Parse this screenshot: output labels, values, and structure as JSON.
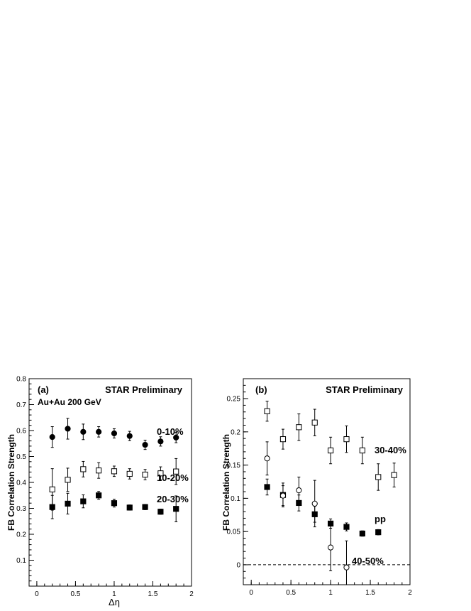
{
  "chart_data": [
    {
      "panel_label": "(a)",
      "type": "scatter",
      "title": "STAR Preliminary",
      "subtitle": "Au+Au 200 GeV",
      "xlabel": "Δη",
      "ylabel": "FB Correlation Strength",
      "xlim": [
        -0.1,
        2.0
      ],
      "ylim": [
        0.0,
        0.8
      ],
      "xticks": [
        "0",
        "0.5",
        "1",
        "1.5",
        "2"
      ],
      "xtick_values": [
        0,
        0.5,
        1,
        1.5,
        2
      ],
      "yticks": [
        "0.1",
        "0.2",
        "0.3",
        "0.4",
        "0.5",
        "0.6",
        "0.7",
        "0.8"
      ],
      "ytick_values": [
        0.1,
        0.2,
        0.3,
        0.4,
        0.5,
        0.6,
        0.7,
        0.8
      ],
      "grid": false,
      "series": [
        {
          "name": "0-10%",
          "marker": "filled-circle",
          "x": [
            0.2,
            0.4,
            0.6,
            0.8,
            1.0,
            1.2,
            1.4,
            1.6,
            1.8
          ],
          "y": [
            0.575,
            0.607,
            0.595,
            0.595,
            0.589,
            0.579,
            0.545,
            0.558,
            0.573
          ],
          "err": [
            0.04,
            0.04,
            0.03,
            0.02,
            0.018,
            0.018,
            0.018,
            0.018,
            0.02
          ]
        },
        {
          "name": "10-20%",
          "marker": "open-square",
          "x": [
            0.2,
            0.4,
            0.6,
            0.8,
            1.0,
            1.2,
            1.4,
            1.6,
            1.8
          ],
          "y": [
            0.373,
            0.41,
            0.451,
            0.446,
            0.443,
            0.433,
            0.43,
            0.435,
            0.442
          ],
          "err": [
            0.08,
            0.045,
            0.03,
            0.03,
            0.02,
            0.02,
            0.02,
            0.025,
            0.05
          ]
        },
        {
          "name": "20-30%",
          "marker": "filled-square",
          "x": [
            0.2,
            0.4,
            0.6,
            0.8,
            1.0,
            1.2,
            1.4,
            1.6,
            1.8
          ],
          "y": [
            0.305,
            0.318,
            0.327,
            0.35,
            0.32,
            0.303,
            0.305,
            0.287,
            0.298
          ],
          "err": [
            0.045,
            0.04,
            0.025,
            0.015,
            0.015,
            0.01,
            0.01,
            0.01,
            0.05
          ]
        }
      ]
    },
    {
      "panel_label": "(b)",
      "type": "scatter",
      "title": "STAR Preliminary",
      "xlabel": "",
      "ylabel": "FB Correlation Strength",
      "xlim": [
        -0.1,
        2.0
      ],
      "ylim": [
        -0.03,
        0.28
      ],
      "xticks": [
        "0",
        "0.5",
        "1",
        "1.5",
        "2"
      ],
      "xtick_values": [
        0,
        0.5,
        1,
        1.5,
        2
      ],
      "yticks": [
        "0",
        "0.05",
        "0.1",
        "0.15",
        "0.2",
        "0.25"
      ],
      "ytick_values": [
        0,
        0.05,
        0.1,
        0.15,
        0.2,
        0.25
      ],
      "grid": false,
      "reference_line_y": 0,
      "series": [
        {
          "name": "30-40%",
          "marker": "open-square",
          "x": [
            0.2,
            0.4,
            0.6,
            0.8,
            1.0,
            1.2,
            1.4,
            1.6,
            1.8
          ],
          "y": [
            0.231,
            0.189,
            0.207,
            0.214,
            0.172,
            0.189,
            0.172,
            0.132,
            0.135
          ],
          "err": [
            0.015,
            0.015,
            0.02,
            0.02,
            0.02,
            0.02,
            0.02,
            0.02,
            0.018
          ]
        },
        {
          "name": "pp",
          "marker": "filled-square",
          "x": [
            0.2,
            0.4,
            0.6,
            0.8,
            1.0,
            1.2,
            1.4,
            1.6
          ],
          "y": [
            0.117,
            0.105,
            0.093,
            0.076,
            0.062,
            0.057,
            0.047,
            0.049
          ],
          "err": [
            0.012,
            0.018,
            0.012,
            0.012,
            0.007,
            0.006,
            0.004,
            0.004
          ]
        },
        {
          "name": "40-50%",
          "marker": "open-circle",
          "x": [
            0.2,
            0.4,
            0.6,
            0.8,
            1.0,
            1.2
          ],
          "y": [
            0.16,
            0.104,
            0.112,
            0.092,
            0.026,
            -0.004
          ],
          "err": [
            0.025,
            0.015,
            0.02,
            0.035,
            0.035,
            0.04
          ]
        }
      ]
    }
  ]
}
